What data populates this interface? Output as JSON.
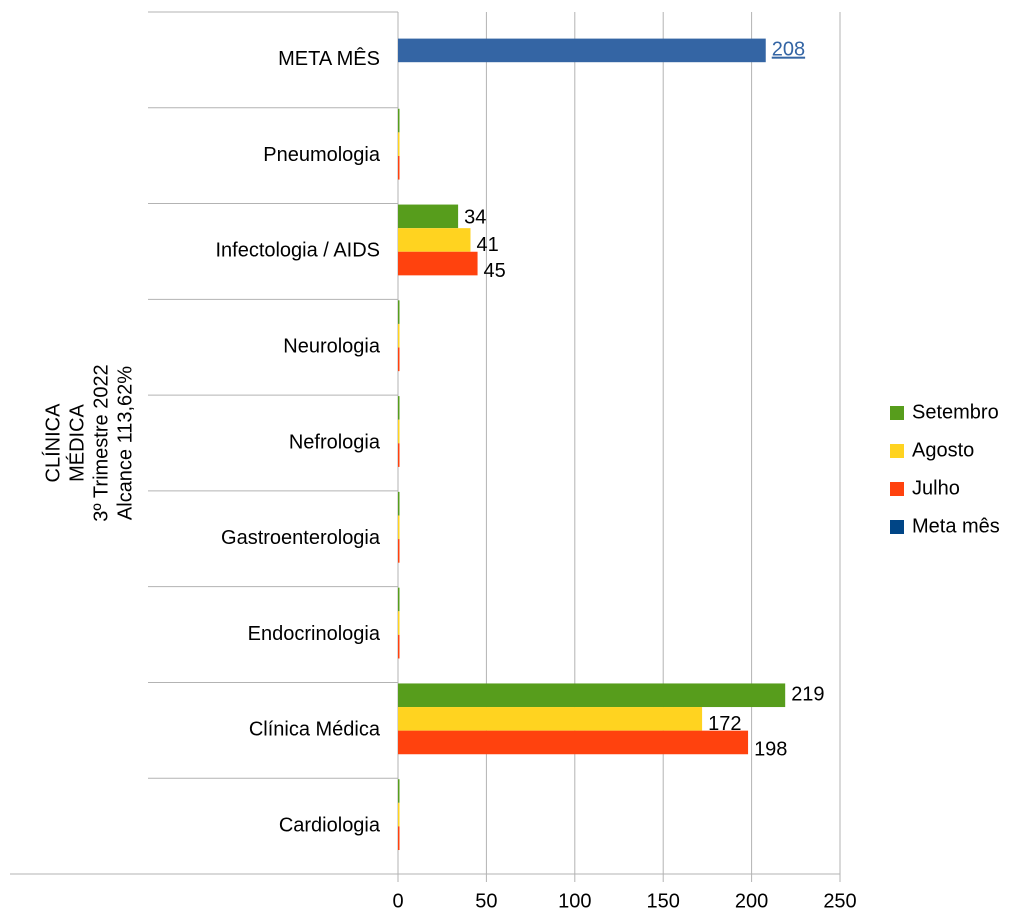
{
  "chart_data": {
    "type": "hbar",
    "y_label": [
      "CLÍNICA",
      "MÉDICA",
      "3º Trimestre 2022",
      "Alcance 113,62%"
    ],
    "categories": [
      "Cardiologia",
      "Clínica Médica",
      "Endocrinologia",
      "Gastroenterologia",
      "Nefrologia",
      "Neurologia",
      "Infectologia / AIDS",
      "Pneumologia",
      "META MÊS"
    ],
    "series": [
      {
        "name": "Setembro",
        "color": "#579d1c",
        "values": [
          0,
          219,
          0,
          0,
          0,
          0,
          34,
          0,
          null
        ]
      },
      {
        "name": "Agosto",
        "color": "#ffd320",
        "values": [
          0,
          172,
          0,
          0,
          0,
          0,
          41,
          0,
          null
        ]
      },
      {
        "name": "Julho",
        "color": "#ff420e",
        "values": [
          0,
          198,
          0,
          0,
          0,
          0,
          45,
          0,
          null
        ]
      },
      {
        "name": "Meta mês",
        "color": "#3465a4",
        "values": [
          null,
          null,
          null,
          null,
          null,
          null,
          null,
          null,
          208
        ]
      }
    ],
    "xlim": [
      0,
      250
    ],
    "xticks": [
      0,
      50,
      100,
      150,
      200,
      250
    ],
    "grid": true,
    "legend": "right"
  }
}
